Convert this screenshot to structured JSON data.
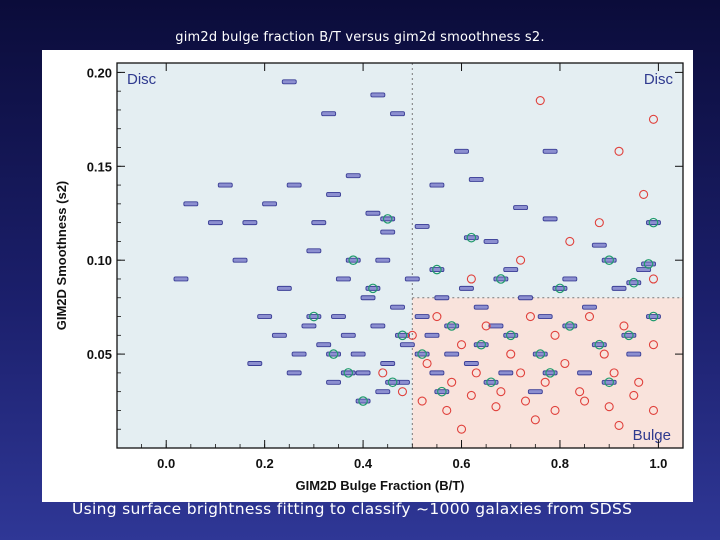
{
  "slide": {
    "title": "gim2d bulge fraction B/T versus gim2d smoothness s2.",
    "caption": "Using surface brightness fitting to classify ~1000 galaxies from SDSS"
  },
  "chart_data": {
    "type": "scatter",
    "xlabel": "GIM2D Bulge Fraction (B/T)",
    "ylabel": "GIM2D Smoothness (s2)",
    "xlim": [
      -0.1,
      1.05
    ],
    "ylim": [
      0.0,
      0.205
    ],
    "xticks": [
      0.0,
      0.2,
      0.4,
      0.6,
      0.8,
      1.0
    ],
    "xtick_labels": [
      "0.0",
      "0.2",
      "0.4",
      "0.6",
      "0.8",
      "1.0"
    ],
    "yticks": [
      0.05,
      0.1,
      0.15,
      0.2
    ],
    "ytick_labels": [
      "0.05",
      "0.10",
      "0.15",
      "0.20"
    ],
    "grid": false,
    "regions": [
      {
        "label": "Disc",
        "x": [
          -0.1,
          0.5
        ],
        "y": [
          0.0,
          0.205
        ],
        "color": "#e4eef2"
      },
      {
        "label": "Disc",
        "x": [
          0.5,
          1.05
        ],
        "y": [
          0.08,
          0.205
        ],
        "color": "#e4eef2"
      },
      {
        "label": "Bulge",
        "x": [
          0.5,
          1.05
        ],
        "y": [
          0.0,
          0.08
        ],
        "color": "#f9e3dc"
      }
    ],
    "divider_x": 0.5,
    "divider_y": 0.08,
    "colors": {
      "disc": "#3b3f96",
      "intermediate": "#1f9a6c",
      "bulge": "#e0413c",
      "label": "#2f3a8f"
    },
    "series": [
      {
        "name": "Disc",
        "marker": "bar",
        "points": [
          [
            0.25,
            0.195
          ],
          [
            0.43,
            0.188
          ],
          [
            0.47,
            0.178
          ],
          [
            0.33,
            0.178
          ],
          [
            0.6,
            0.158
          ],
          [
            0.78,
            0.158
          ],
          [
            0.12,
            0.14
          ],
          [
            0.21,
            0.13
          ],
          [
            0.17,
            0.12
          ],
          [
            0.34,
            0.135
          ],
          [
            0.42,
            0.125
          ],
          [
            0.03,
            0.09
          ],
          [
            0.1,
            0.12
          ],
          [
            0.26,
            0.14
          ],
          [
            0.3,
            0.105
          ],
          [
            0.38,
            0.145
          ],
          [
            0.45,
            0.115
          ],
          [
            0.55,
            0.14
          ],
          [
            0.63,
            0.143
          ],
          [
            0.72,
            0.128
          ],
          [
            0.05,
            0.13
          ],
          [
            0.15,
            0.1
          ],
          [
            0.24,
            0.085
          ],
          [
            0.31,
            0.12
          ],
          [
            0.36,
            0.09
          ],
          [
            0.44,
            0.1
          ],
          [
            0.52,
            0.118
          ],
          [
            0.66,
            0.11
          ],
          [
            0.78,
            0.122
          ],
          [
            0.88,
            0.108
          ],
          [
            0.2,
            0.07
          ],
          [
            0.23,
            0.06
          ],
          [
            0.27,
            0.05
          ],
          [
            0.29,
            0.065
          ],
          [
            0.32,
            0.055
          ],
          [
            0.35,
            0.07
          ],
          [
            0.37,
            0.06
          ],
          [
            0.39,
            0.05
          ],
          [
            0.41,
            0.08
          ],
          [
            0.43,
            0.065
          ],
          [
            0.45,
            0.045
          ],
          [
            0.47,
            0.075
          ],
          [
            0.49,
            0.055
          ],
          [
            0.5,
            0.09
          ],
          [
            0.52,
            0.07
          ],
          [
            0.54,
            0.06
          ],
          [
            0.56,
            0.08
          ],
          [
            0.58,
            0.05
          ],
          [
            0.61,
            0.085
          ],
          [
            0.64,
            0.075
          ],
          [
            0.67,
            0.065
          ],
          [
            0.7,
            0.095
          ],
          [
            0.73,
            0.08
          ],
          [
            0.77,
            0.07
          ],
          [
            0.82,
            0.09
          ],
          [
            0.86,
            0.075
          ],
          [
            0.92,
            0.085
          ],
          [
            0.97,
            0.095
          ],
          [
            0.18,
            0.045
          ],
          [
            0.26,
            0.04
          ],
          [
            0.34,
            0.035
          ],
          [
            0.4,
            0.04
          ],
          [
            0.44,
            0.03
          ],
          [
            0.48,
            0.035
          ],
          [
            0.55,
            0.04
          ],
          [
            0.62,
            0.045
          ],
          [
            0.69,
            0.04
          ],
          [
            0.75,
            0.03
          ],
          [
            0.85,
            0.04
          ],
          [
            0.95,
            0.05
          ]
        ]
      },
      {
        "name": "Intermediate",
        "marker": "bar-circle",
        "points": [
          [
            0.99,
            0.12
          ],
          [
            0.98,
            0.098
          ],
          [
            0.9,
            0.1
          ],
          [
            0.62,
            0.112
          ],
          [
            0.45,
            0.122
          ],
          [
            0.38,
            0.1
          ],
          [
            0.42,
            0.085
          ],
          [
            0.55,
            0.095
          ],
          [
            0.68,
            0.09
          ],
          [
            0.8,
            0.085
          ],
          [
            0.95,
            0.088
          ],
          [
            0.3,
            0.07
          ],
          [
            0.34,
            0.05
          ],
          [
            0.37,
            0.04
          ],
          [
            0.4,
            0.025
          ],
          [
            0.48,
            0.06
          ],
          [
            0.52,
            0.05
          ],
          [
            0.58,
            0.065
          ],
          [
            0.64,
            0.055
          ],
          [
            0.7,
            0.06
          ],
          [
            0.76,
            0.05
          ],
          [
            0.82,
            0.065
          ],
          [
            0.88,
            0.055
          ],
          [
            0.94,
            0.06
          ],
          [
            0.99,
            0.07
          ],
          [
            0.46,
            0.035
          ],
          [
            0.56,
            0.03
          ],
          [
            0.66,
            0.035
          ],
          [
            0.78,
            0.04
          ],
          [
            0.9,
            0.035
          ]
        ]
      },
      {
        "name": "Bulge",
        "marker": "circle",
        "points": [
          [
            0.76,
            0.185
          ],
          [
            0.99,
            0.175
          ],
          [
            0.92,
            0.158
          ],
          [
            0.97,
            0.135
          ],
          [
            0.88,
            0.12
          ],
          [
            0.82,
            0.11
          ],
          [
            0.72,
            0.1
          ],
          [
            0.62,
            0.09
          ],
          [
            0.99,
            0.09
          ],
          [
            0.5,
            0.06
          ],
          [
            0.53,
            0.045
          ],
          [
            0.55,
            0.07
          ],
          [
            0.58,
            0.035
          ],
          [
            0.6,
            0.055
          ],
          [
            0.63,
            0.04
          ],
          [
            0.65,
            0.065
          ],
          [
            0.68,
            0.03
          ],
          [
            0.7,
            0.05
          ],
          [
            0.72,
            0.04
          ],
          [
            0.74,
            0.07
          ],
          [
            0.77,
            0.035
          ],
          [
            0.79,
            0.06
          ],
          [
            0.81,
            0.045
          ],
          [
            0.84,
            0.03
          ],
          [
            0.86,
            0.07
          ],
          [
            0.89,
            0.05
          ],
          [
            0.91,
            0.04
          ],
          [
            0.93,
            0.065
          ],
          [
            0.96,
            0.035
          ],
          [
            0.99,
            0.055
          ],
          [
            0.52,
            0.025
          ],
          [
            0.57,
            0.02
          ],
          [
            0.62,
            0.028
          ],
          [
            0.67,
            0.022
          ],
          [
            0.73,
            0.025
          ],
          [
            0.79,
            0.02
          ],
          [
            0.85,
            0.025
          ],
          [
            0.9,
            0.022
          ],
          [
            0.95,
            0.028
          ],
          [
            0.99,
            0.02
          ],
          [
            0.48,
            0.03
          ],
          [
            0.44,
            0.04
          ],
          [
            0.6,
            0.01
          ],
          [
            0.75,
            0.015
          ],
          [
            0.92,
            0.012
          ]
        ]
      }
    ]
  }
}
